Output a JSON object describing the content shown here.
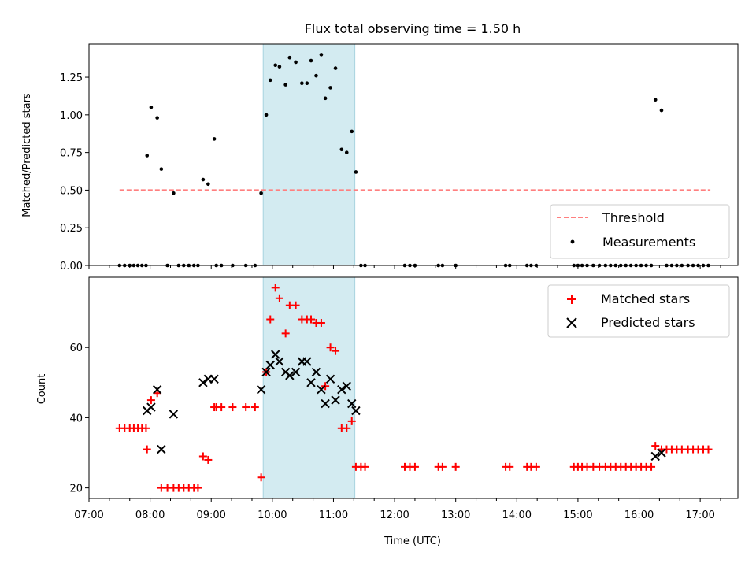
{
  "chart_data": [
    {
      "type": "scatter",
      "title": "Flux total observing time = 1.50 h",
      "xlabel": "",
      "ylabel": "Matched/Predicted stars",
      "ylim": [
        0,
        1.47
      ],
      "yticks": [
        "0.00",
        "0.25",
        "0.50",
        "0.75",
        "1.00",
        "1.25"
      ],
      "ytick_values": [
        0,
        0.25,
        0.5,
        0.75,
        1.0,
        1.25
      ],
      "highlight": {
        "start": "09:51",
        "end": "11:21",
        "color": "#d3ebf1"
      },
      "threshold": {
        "name": "Threshold",
        "value": 0.5,
        "x_start": "07:30",
        "x_end": "17:10",
        "color": "#ff7f7f"
      },
      "legend": {
        "location": "lower-right",
        "entries": [
          "Threshold",
          "Measurements"
        ]
      },
      "series": [
        {
          "name": "Measurements",
          "color": "#000000",
          "points": [
            [
              "07:30",
              0
            ],
            [
              "07:35",
              0
            ],
            [
              "07:40",
              0
            ],
            [
              "07:44",
              0
            ],
            [
              "07:48",
              0
            ],
            [
              "07:52",
              0
            ],
            [
              "07:56",
              0
            ],
            [
              "07:57",
              0.73
            ],
            [
              "08:01",
              1.05
            ],
            [
              "08:07",
              0.98
            ],
            [
              "08:11",
              0.64
            ],
            [
              "08:17",
              0
            ],
            [
              "08:23",
              0.48
            ],
            [
              "08:28",
              0
            ],
            [
              "08:33",
              0
            ],
            [
              "08:38",
              0
            ],
            [
              "08:43",
              0
            ],
            [
              "08:47",
              0
            ],
            [
              "08:52",
              0.57
            ],
            [
              "08:57",
              0.54
            ],
            [
              "09:03",
              0.84
            ],
            [
              "09:05",
              0
            ],
            [
              "09:10",
              0
            ],
            [
              "09:21",
              0
            ],
            [
              "09:34",
              0
            ],
            [
              "09:43",
              0
            ],
            [
              "09:49",
              0.48
            ],
            [
              "09:54",
              1.0
            ],
            [
              "09:58",
              1.23
            ],
            [
              "10:03",
              1.33
            ],
            [
              "10:07",
              1.32
            ],
            [
              "10:13",
              1.2
            ],
            [
              "10:17",
              1.38
            ],
            [
              "10:23",
              1.35
            ],
            [
              "10:29",
              1.21
            ],
            [
              "10:34",
              1.21
            ],
            [
              "10:38",
              1.36
            ],
            [
              "10:43",
              1.26
            ],
            [
              "10:48",
              1.4
            ],
            [
              "10:52",
              1.11
            ],
            [
              "10:57",
              1.18
            ],
            [
              "11:02",
              1.31
            ],
            [
              "11:08",
              0.77
            ],
            [
              "11:13",
              0.75
            ],
            [
              "11:18",
              0.89
            ],
            [
              "11:22",
              0.62
            ],
            [
              "11:27",
              0
            ],
            [
              "11:31",
              0
            ],
            [
              "12:10",
              0
            ],
            [
              "12:15",
              0
            ],
            [
              "12:20",
              0
            ],
            [
              "12:43",
              0
            ],
            [
              "12:47",
              0
            ],
            [
              "13:00",
              0
            ],
            [
              "13:49",
              0
            ],
            [
              "13:53",
              0
            ],
            [
              "14:10",
              0
            ],
            [
              "14:14",
              0
            ],
            [
              "14:19",
              0
            ],
            [
              "14:56",
              0
            ],
            [
              "15:00",
              0
            ],
            [
              "15:04",
              0
            ],
            [
              "15:09",
              0
            ],
            [
              "15:15",
              0
            ],
            [
              "15:21",
              0
            ],
            [
              "15:27",
              0
            ],
            [
              "15:32",
              0
            ],
            [
              "15:37",
              0
            ],
            [
              "15:42",
              0
            ],
            [
              "15:47",
              0
            ],
            [
              "15:52",
              0
            ],
            [
              "15:57",
              0
            ],
            [
              "16:02",
              0
            ],
            [
              "16:07",
              0
            ],
            [
              "16:12",
              0
            ],
            [
              "16:16",
              1.1
            ],
            [
              "16:22",
              1.03
            ],
            [
              "16:27",
              0
            ],
            [
              "16:32",
              0
            ],
            [
              "16:37",
              0
            ],
            [
              "16:42",
              0
            ],
            [
              "16:48",
              0
            ],
            [
              "16:53",
              0
            ],
            [
              "16:58",
              0
            ],
            [
              "17:03",
              0
            ],
            [
              "17:08",
              0
            ]
          ]
        }
      ]
    },
    {
      "type": "scatter",
      "title": "",
      "xlabel": "Time (UTC)",
      "ylabel": "Count",
      "xlim": [
        "07:00",
        "17:37"
      ],
      "xticks": [
        "07:00",
        "08:00",
        "09:00",
        "10:00",
        "11:00",
        "12:00",
        "13:00",
        "14:00",
        "15:00",
        "16:00",
        "17:00"
      ],
      "ylim": [
        17,
        80
      ],
      "yticks": [
        "20",
        "40",
        "60"
      ],
      "ytick_values": [
        20,
        40,
        60
      ],
      "legend": {
        "location": "upper-right",
        "entries": [
          "Matched stars",
          "Predicted stars"
        ]
      },
      "series": [
        {
          "name": "Matched stars",
          "marker": "plus",
          "color": "#ff0000",
          "points": [
            [
              "07:30",
              37
            ],
            [
              "07:35",
              37
            ],
            [
              "07:40",
              37
            ],
            [
              "07:44",
              37
            ],
            [
              "07:48",
              37
            ],
            [
              "07:52",
              37
            ],
            [
              "07:56",
              37
            ],
            [
              "07:57",
              31
            ],
            [
              "08:01",
              45
            ],
            [
              "08:07",
              47
            ],
            [
              "08:11",
              20
            ],
            [
              "08:17",
              20
            ],
            [
              "08:23",
              20
            ],
            [
              "08:28",
              20
            ],
            [
              "08:33",
              20
            ],
            [
              "08:38",
              20
            ],
            [
              "08:43",
              20
            ],
            [
              "08:47",
              20
            ],
            [
              "08:52",
              29
            ],
            [
              "08:57",
              28
            ],
            [
              "09:03",
              43
            ],
            [
              "09:05",
              43
            ],
            [
              "09:10",
              43
            ],
            [
              "09:21",
              43
            ],
            [
              "09:34",
              43
            ],
            [
              "09:43",
              43
            ],
            [
              "09:49",
              23
            ],
            [
              "09:54",
              53
            ],
            [
              "09:58",
              68
            ],
            [
              "10:03",
              77
            ],
            [
              "10:07",
              74
            ],
            [
              "10:13",
              64
            ],
            [
              "10:17",
              72
            ],
            [
              "10:23",
              72
            ],
            [
              "10:29",
              68
            ],
            [
              "10:34",
              68
            ],
            [
              "10:38",
              68
            ],
            [
              "10:43",
              67
            ],
            [
              "10:48",
              67
            ],
            [
              "10:52",
              49
            ],
            [
              "10:57",
              60
            ],
            [
              "11:02",
              59
            ],
            [
              "11:08",
              37
            ],
            [
              "11:13",
              37
            ],
            [
              "11:18",
              39
            ],
            [
              "11:22",
              26
            ],
            [
              "11:27",
              26
            ],
            [
              "11:31",
              26
            ],
            [
              "12:10",
              26
            ],
            [
              "12:15",
              26
            ],
            [
              "12:20",
              26
            ],
            [
              "12:43",
              26
            ],
            [
              "12:47",
              26
            ],
            [
              "13:00",
              26
            ],
            [
              "13:49",
              26
            ],
            [
              "13:53",
              26
            ],
            [
              "14:10",
              26
            ],
            [
              "14:14",
              26
            ],
            [
              "14:19",
              26
            ],
            [
              "14:56",
              26
            ],
            [
              "15:00",
              26
            ],
            [
              "15:04",
              26
            ],
            [
              "15:09",
              26
            ],
            [
              "15:15",
              26
            ],
            [
              "15:21",
              26
            ],
            [
              "15:27",
              26
            ],
            [
              "15:32",
              26
            ],
            [
              "15:37",
              26
            ],
            [
              "15:42",
              26
            ],
            [
              "15:47",
              26
            ],
            [
              "15:52",
              26
            ],
            [
              "15:57",
              26
            ],
            [
              "16:02",
              26
            ],
            [
              "16:07",
              26
            ],
            [
              "16:12",
              26
            ],
            [
              "16:16",
              32
            ],
            [
              "16:22",
              31
            ],
            [
              "16:27",
              31
            ],
            [
              "16:32",
              31
            ],
            [
              "16:37",
              31
            ],
            [
              "16:42",
              31
            ],
            [
              "16:48",
              31
            ],
            [
              "16:53",
              31
            ],
            [
              "16:58",
              31
            ],
            [
              "17:03",
              31
            ],
            [
              "17:08",
              31
            ]
          ]
        },
        {
          "name": "Predicted stars",
          "marker": "x",
          "color": "#000000",
          "points": [
            [
              "07:57",
              42
            ],
            [
              "08:01",
              43
            ],
            [
              "08:07",
              48
            ],
            [
              "08:11",
              31
            ],
            [
              "08:23",
              41
            ],
            [
              "08:52",
              50
            ],
            [
              "08:57",
              51
            ],
            [
              "09:03",
              51
            ],
            [
              "09:49",
              48
            ],
            [
              "09:54",
              53
            ],
            [
              "09:58",
              55
            ],
            [
              "10:03",
              58
            ],
            [
              "10:07",
              56
            ],
            [
              "10:13",
              53
            ],
            [
              "10:17",
              52
            ],
            [
              "10:23",
              53
            ],
            [
              "10:29",
              56
            ],
            [
              "10:34",
              56
            ],
            [
              "10:38",
              50
            ],
            [
              "10:43",
              53
            ],
            [
              "10:48",
              48
            ],
            [
              "10:52",
              44
            ],
            [
              "10:57",
              51
            ],
            [
              "11:02",
              45
            ],
            [
              "11:08",
              48
            ],
            [
              "11:13",
              49
            ],
            [
              "11:18",
              44
            ],
            [
              "11:22",
              42
            ],
            [
              "16:16",
              29
            ],
            [
              "16:22",
              30
            ]
          ]
        }
      ]
    }
  ]
}
